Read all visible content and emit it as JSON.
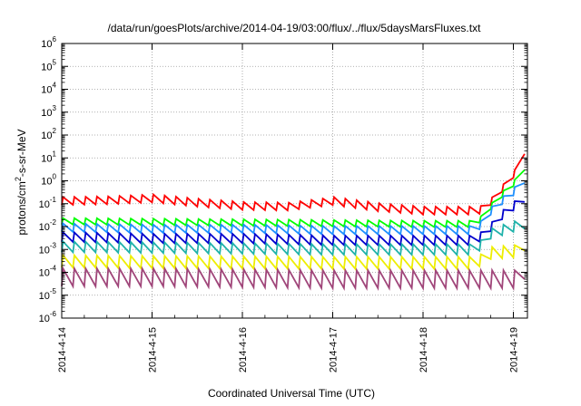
{
  "chart_data": {
    "type": "line",
    "title": "/data/run/goesPlots/archive/2014-04-19/03:00/flux/../flux/5daysMarsFluxes.txt",
    "xlabel": "Coordinated Universal Time (UTC)",
    "ylabel": "protons/cm2-s-sr-MeV",
    "ylabel_parts": {
      "pre": "protons/cm",
      "sup": "2",
      "post": "-s-sr-MeV"
    },
    "yscale": "log",
    "ylim": [
      1e-06,
      1000000.0
    ],
    "xlim": [
      "2014-04-14",
      "2014-04-19 03:00"
    ],
    "grid": true,
    "x_ticks": [
      "2014-4-14",
      "2014-4-15",
      "2014-4-16",
      "2014-4-17",
      "2014-4-18",
      "2014-4-19"
    ],
    "y_ticks": [
      {
        "base": "10",
        "exp": "-6"
      },
      {
        "base": "10",
        "exp": "-5"
      },
      {
        "base": "10",
        "exp": "-4"
      },
      {
        "base": "10",
        "exp": "-3"
      },
      {
        "base": "10",
        "exp": "-2"
      },
      {
        "base": "10",
        "exp": "-1"
      },
      {
        "base": "10",
        "exp": "0"
      },
      {
        "base": "10",
        "exp": "1"
      },
      {
        "base": "10",
        "exp": "2"
      },
      {
        "base": "10",
        "exp": "3"
      },
      {
        "base": "10",
        "exp": "4"
      },
      {
        "base": "10",
        "exp": "5"
      },
      {
        "base": "10",
        "exp": "6"
      }
    ],
    "sawtooth_period_days": 0.125,
    "series": [
      {
        "color": "#ff0000",
        "values": [
          [
            "2014-04-14 00:00",
            0.13
          ],
          [
            "2014-04-14 12:00",
            0.14
          ],
          [
            "2014-04-15 00:00",
            0.17
          ],
          [
            "2014-04-15 12:00",
            0.11
          ],
          [
            "2014-04-16 00:00",
            0.08
          ],
          [
            "2014-04-16 12:00",
            0.075
          ],
          [
            "2014-04-17 00:00",
            0.13
          ],
          [
            "2014-04-17 12:00",
            0.07
          ],
          [
            "2014-04-18 00:00",
            0.05
          ],
          [
            "2014-04-18 12:00",
            0.05
          ],
          [
            "2014-04-18 16:00",
            0.055
          ],
          [
            "2014-04-18 20:00",
            0.3
          ],
          [
            "2014-04-19 00:00",
            2.0
          ],
          [
            "2014-04-19 03:00",
            15
          ]
        ]
      },
      {
        "color": "#00ff00",
        "values": [
          [
            "2014-04-14 00:00",
            0.017
          ],
          [
            "2014-04-15 00:00",
            0.016
          ],
          [
            "2014-04-16 00:00",
            0.015
          ],
          [
            "2014-04-17 00:00",
            0.014
          ],
          [
            "2014-04-18 00:00",
            0.013
          ],
          [
            "2014-04-18 14:00",
            0.013
          ],
          [
            "2014-04-18 18:00",
            0.08
          ],
          [
            "2014-04-18 22:00",
            0.4
          ],
          [
            "2014-04-19 00:00",
            0.8
          ],
          [
            "2014-04-19 03:00",
            3
          ]
        ]
      },
      {
        "color": "#1e90ff",
        "values": [
          [
            "2014-04-14 00:00",
            0.009
          ],
          [
            "2014-04-15 00:00",
            0.008
          ],
          [
            "2014-04-16 00:00",
            0.008
          ],
          [
            "2014-04-17 00:00",
            0.007
          ],
          [
            "2014-04-18 00:00",
            0.007
          ],
          [
            "2014-04-18 14:00",
            0.007
          ],
          [
            "2014-04-18 18:00",
            0.05
          ],
          [
            "2014-04-18 22:00",
            0.2
          ],
          [
            "2014-04-19 00:00",
            0.35
          ],
          [
            "2014-04-19 03:00",
            0.8
          ]
        ]
      },
      {
        "color": "#0000cd",
        "values": [
          [
            "2014-04-14 00:00",
            0.0035
          ],
          [
            "2014-04-15 00:00",
            0.003
          ],
          [
            "2014-04-16 00:00",
            0.003
          ],
          [
            "2014-04-17 00:00",
            0.0025
          ],
          [
            "2014-04-18 00:00",
            0.0025
          ],
          [
            "2014-04-18 14:00",
            0.0025
          ],
          [
            "2014-04-18 18:00",
            0.01
          ],
          [
            "2014-04-18 22:00",
            0.05
          ],
          [
            "2014-04-19 00:00",
            0.08
          ],
          [
            "2014-04-19 03:00",
            0.12
          ]
        ]
      },
      {
        "color": "#20b2aa",
        "values": [
          [
            "2014-04-14 00:00",
            0.0013
          ],
          [
            "2014-04-15 00:00",
            0.0012
          ],
          [
            "2014-04-16 00:00",
            0.0011
          ],
          [
            "2014-04-17 00:00",
            0.001
          ],
          [
            "2014-04-18 00:00",
            0.001
          ],
          [
            "2014-04-18 14:00",
            0.001
          ],
          [
            "2014-04-18 18:00",
            0.005
          ],
          [
            "2014-04-18 22:00",
            0.008
          ],
          [
            "2014-04-19 00:00",
            0.01
          ],
          [
            "2014-04-19 03:00",
            0.008
          ]
        ]
      },
      {
        "color": "#eeee00",
        "values": [
          [
            "2014-04-14 00:00",
            0.0003
          ],
          [
            "2014-04-15 00:00",
            0.00028
          ],
          [
            "2014-04-16 00:00",
            0.00027
          ],
          [
            "2014-04-17 00:00",
            0.00026
          ],
          [
            "2014-04-18 00:00",
            0.00026
          ],
          [
            "2014-04-18 14:00",
            0.00026
          ],
          [
            "2014-04-18 18:00",
            0.0007
          ],
          [
            "2014-04-19 03:00",
            0.0009
          ]
        ]
      },
      {
        "color": "#a0467a",
        "values": [
          [
            "2014-04-14 00:00",
            6e-05
          ],
          [
            "2014-04-15 00:00",
            6e-05
          ],
          [
            "2014-04-16 00:00",
            5.5e-05
          ],
          [
            "2014-04-17 00:00",
            5e-05
          ],
          [
            "2014-04-18 00:00",
            5e-05
          ],
          [
            "2014-04-19 00:00",
            5e-05
          ],
          [
            "2014-04-19 03:00",
            5e-05
          ]
        ]
      }
    ]
  }
}
